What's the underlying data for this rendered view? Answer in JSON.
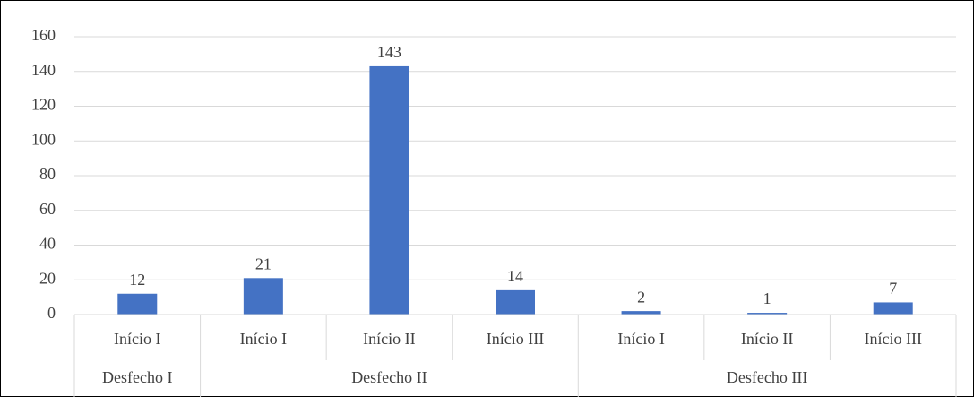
{
  "chart_data": {
    "type": "bar",
    "color": "#4472c4",
    "grid": true,
    "ylim": [
      0,
      160
    ],
    "yticks": [
      0,
      20,
      40,
      60,
      80,
      100,
      120,
      140,
      160
    ],
    "groups": [
      {
        "name": "Desfecho I",
        "categories": [
          "Início I"
        ],
        "values": [
          12
        ]
      },
      {
        "name": "Desfecho II",
        "categories": [
          "Início I",
          "Início II",
          "Início III"
        ],
        "values": [
          21,
          143,
          14
        ]
      },
      {
        "name": "Desfecho III",
        "categories": [
          "Início I",
          "Início II",
          "Início III"
        ],
        "values": [
          2,
          1,
          7
        ]
      }
    ]
  }
}
